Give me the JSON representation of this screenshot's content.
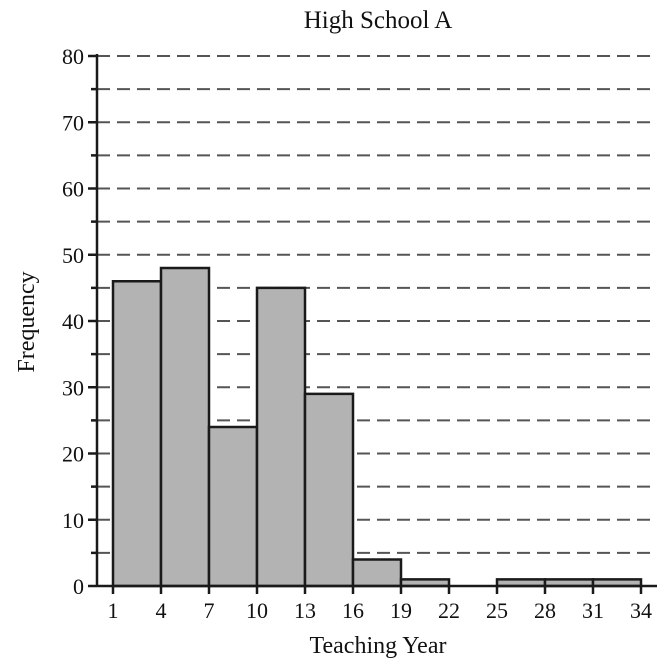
{
  "chart_data": {
    "type": "bar",
    "title": "High School A",
    "xlabel": "Teaching Year",
    "ylabel": "Frequency",
    "ylim": [
      0,
      80
    ],
    "y_ticks": [
      0,
      10,
      20,
      30,
      40,
      50,
      60,
      70,
      80
    ],
    "y_minor_step": 5,
    "x_range": [
      0,
      35
    ],
    "x_ticks": [
      1,
      4,
      7,
      10,
      13,
      16,
      19,
      22,
      25,
      28,
      31,
      34
    ],
    "bin_edges": [
      1,
      4,
      7,
      10,
      13,
      16,
      19,
      22,
      25,
      28,
      31,
      34
    ],
    "values": [
      46,
      48,
      24,
      45,
      29,
      4,
      1,
      0,
      1,
      1,
      1
    ],
    "grid": "dashed horizontal every 5",
    "colors": {
      "bar_fill": "#b3b3b3",
      "bar_stroke": "#1a1a1a",
      "grid": "#555555"
    }
  }
}
